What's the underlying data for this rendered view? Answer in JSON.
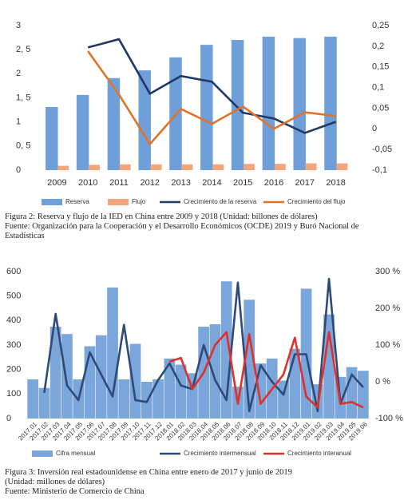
{
  "chart_data": [
    {
      "type": "bar",
      "categories": [
        "2009",
        "2010",
        "2011",
        "2012",
        "2013",
        "2014",
        "2015",
        "2016",
        "2017",
        "2018"
      ],
      "series": [
        {
          "name": "Reserva",
          "color": "#6f9fd8",
          "values": [
            1.31,
            1.56,
            1.91,
            2.07,
            2.34,
            2.6,
            2.7,
            2.77,
            2.74,
            2.77
          ]
        },
        {
          "name": "Flujo",
          "color": "#f4a57a",
          "values": [
            0.09,
            0.11,
            0.12,
            0.12,
            0.12,
            0.12,
            0.13,
            0.13,
            0.14,
            0.14
          ]
        },
        {
          "name": "Crecimiento de la reserva",
          "type": "line",
          "axis": "y2",
          "color": "#1f3864",
          "values": [
            null,
            0.197,
            0.217,
            0.085,
            0.128,
            0.114,
            0.039,
            0.025,
            -0.01,
            0.017
          ]
        },
        {
          "name": "Crecimiento del flujo",
          "type": "line",
          "axis": "y2",
          "color": "#e0732a",
          "values": [
            null,
            0.188,
            0.083,
            -0.037,
            0.048,
            0.012,
            0.054,
            0,
            0.04,
            0.031
          ]
        }
      ],
      "ylim": [
        0,
        3
      ],
      "yticks": [
        {
          "value": 3,
          "label": "3"
        },
        {
          "value": 2.5,
          "label": "2, 5"
        },
        {
          "value": 2,
          "label": "2"
        },
        {
          "value": 1.5,
          "label": "1, 5"
        },
        {
          "value": 1,
          "label": "1"
        },
        {
          "value": 0.5,
          "label": "0, 5"
        },
        {
          "value": 0,
          "label": "0"
        }
      ],
      "y2lim": [
        -0.1,
        0.25
      ],
      "y2ticks": [
        {
          "value": 0.25,
          "label": "0,25"
        },
        {
          "value": 0.2,
          "label": "0,2"
        },
        {
          "value": 0.15,
          "label": "0,15"
        },
        {
          "value": 0.1,
          "label": "0,1"
        },
        {
          "value": 0.05,
          "label": "0,05"
        },
        {
          "value": 0,
          "label": "0"
        },
        {
          "value": -0.05,
          "label": "-0,05"
        },
        {
          "value": -0.1,
          "label": "-0,1"
        }
      ],
      "legend": "bottom"
    },
    {
      "type": "bar",
      "categories": [
        "2017.01",
        "2017.02",
        "2017.03",
        "2017.04",
        "2017.05",
        "2017.06",
        "2017.07",
        "2017.08",
        "2017.09",
        "2017.10",
        "2017.11",
        "2017.12",
        "2018.01",
        "2018.02",
        "2018.03",
        "2018.04",
        "2018.05",
        "2018.06",
        "2018.07",
        "2018.08",
        "2018.09",
        "2018.10",
        "2018.11",
        "2018.12",
        "2019.01",
        "2019.02",
        "2019.03",
        "2019.04",
        "2019.05",
        "2019.06"
      ],
      "series": [
        {
          "name": "Cifra mensual",
          "color": "#7aa6dc",
          "values": [
            160,
            125,
            375,
            345,
            160,
            295,
            340,
            535,
            160,
            305,
            150,
            160,
            245,
            220,
            185,
            375,
            385,
            560,
            130,
            485,
            225,
            245,
            155,
            285,
            530,
            140,
            425,
            170,
            210,
            195
          ]
        },
        {
          "name": "Crecimiento intermensual",
          "type": "line",
          "axis": "y2",
          "color": "#2e4a78",
          "values": [
            null,
            -30,
            185,
            -10,
            -50,
            80,
            20,
            -40,
            155,
            -50,
            -55,
            5,
            50,
            -10,
            -20,
            100,
            5,
            -50,
            270,
            -80,
            45,
            0,
            -35,
            75,
            75,
            -80,
            280,
            -60,
            20,
            -15
          ]
        },
        {
          "name": "Crecimiento interanual",
          "type": "line",
          "axis": "y2",
          "color": "#e0302a",
          "values": [
            null,
            null,
            null,
            null,
            null,
            null,
            null,
            null,
            null,
            null,
            null,
            null,
            55,
            65,
            -20,
            25,
            100,
            135,
            -60,
            130,
            -60,
            -20,
            20,
            120,
            -40,
            -70,
            135,
            -60,
            -55,
            -70
          ]
        }
      ],
      "ylim": [
        0,
        600
      ],
      "yticks": [
        0,
        100,
        200,
        300,
        400,
        500,
        600
      ],
      "y2lim": [
        -100,
        300
      ],
      "y2ticks": [
        {
          "value": 300,
          "label": "300 %"
        },
        {
          "value": 200,
          "label": "200 %"
        },
        {
          "value": 100,
          "label": "100 %"
        },
        {
          "value": 0,
          "label": "0 %"
        },
        {
          "value": -100,
          "label": "-100 %"
        }
      ],
      "legend": "bottom"
    }
  ],
  "captions": [
    {
      "lines": [
        "Figura 2: Reserva y flujo de la IED en China entre 2009 y 2018 (Unidad: billones de dólares)",
        "Fuente: Organización para la Cooperación y el Desarrollo Económicos (OCDE) 2019 y Buró Nacional de Estadísticas"
      ]
    },
    {
      "lines": [
        "Figura 3: Inversión real estadounidense en China entre enero de 2017 y junio de 2019",
        "(Unidad: millones de dólares)",
        "Fuente: Ministerio de Comercio de China"
      ]
    }
  ]
}
